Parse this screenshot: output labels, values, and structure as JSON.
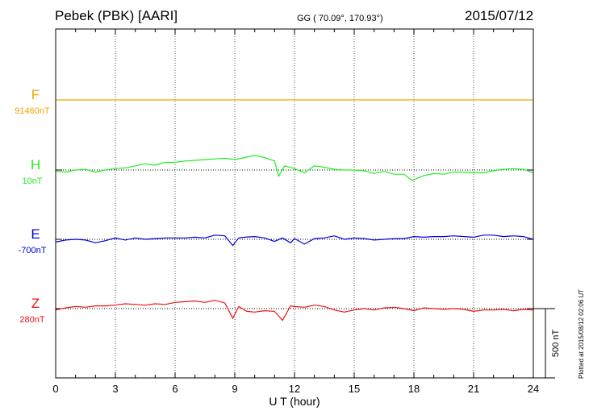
{
  "header": {
    "station": "Pebek (PBK)  [AARI]",
    "coords": "GG ( 70.09°, 170.93°)",
    "date": "2015/07/12"
  },
  "footer": {
    "plotted": "Plotted at 2015/08/12 02:06 UT"
  },
  "chart_data": {
    "type": "line",
    "xlabel": "U T (hour)",
    "xlim": [
      0,
      24
    ],
    "xticks": [
      "0",
      "3",
      "6",
      "9",
      "12",
      "15",
      "18",
      "21",
      "24"
    ],
    "grid": "dotted vertical lines every 3 hours",
    "scale_bar": {
      "label": "500 nT",
      "value_nT": 500
    },
    "series": [
      {
        "name": "F",
        "baseline_label": "91460nT",
        "baseline_nT": 91460,
        "color": "#f5a300",
        "x": [
          0,
          1,
          2,
          3,
          4,
          5,
          6,
          7,
          8,
          9,
          10,
          11,
          12,
          13,
          14,
          15,
          16,
          17,
          18,
          19,
          20,
          21,
          22,
          23,
          24
        ],
        "y": [
          0,
          0,
          0,
          0,
          0,
          0,
          0,
          0,
          0,
          0,
          0,
          0,
          0,
          0,
          0,
          0,
          0,
          0,
          0,
          0,
          0,
          0,
          0,
          0,
          0
        ]
      },
      {
        "name": "H",
        "baseline_label": "10nT",
        "baseline_nT": 10,
        "color": "#22ee22",
        "x": [
          0,
          0.5,
          1,
          1.5,
          2,
          2.5,
          3,
          3.5,
          4,
          4.5,
          5,
          5.5,
          6,
          6.5,
          7,
          7.5,
          8,
          8.5,
          9,
          9.5,
          10,
          10.5,
          11,
          11.2,
          11.5,
          12,
          12.5,
          13,
          13.5,
          14,
          14.5,
          15,
          15.5,
          16,
          16.5,
          17,
          17.5,
          17.9,
          18.5,
          19,
          19.5,
          20,
          20.5,
          21,
          21.5,
          22,
          22.5,
          23,
          23.5,
          24
        ],
        "y": [
          -10,
          -15,
          0,
          5,
          -15,
          0,
          10,
          15,
          30,
          45,
          35,
          55,
          55,
          65,
          70,
          75,
          80,
          85,
          75,
          90,
          105,
          90,
          65,
          -45,
          30,
          10,
          -20,
          30,
          20,
          5,
          0,
          0,
          -5,
          -25,
          -10,
          -30,
          -30,
          -75,
          -40,
          -25,
          -30,
          -15,
          -15,
          -20,
          -20,
          -5,
          5,
          10,
          5,
          -20
        ]
      },
      {
        "name": "E",
        "baseline_label": "-700nT",
        "baseline_nT": -700,
        "color": "#0000dd",
        "x": [
          0,
          0.5,
          1,
          1.5,
          2,
          2.5,
          3,
          3.5,
          4,
          4.5,
          5,
          5.5,
          6,
          6.5,
          7,
          7.5,
          8,
          8.5,
          8.9,
          9.2,
          9.5,
          10,
          10.5,
          11,
          11.4,
          11.8,
          12,
          12.5,
          13,
          13.5,
          14,
          14.5,
          15,
          15.5,
          16,
          16.5,
          17,
          17.5,
          18,
          18.5,
          19,
          19.5,
          20,
          20.5,
          21,
          21.5,
          22,
          22.5,
          23,
          23.5,
          24
        ],
        "y": [
          -20,
          -5,
          0,
          -5,
          -25,
          -10,
          10,
          -5,
          10,
          0,
          5,
          10,
          10,
          10,
          15,
          10,
          30,
          25,
          -45,
          10,
          15,
          20,
          10,
          -15,
          10,
          -25,
          5,
          -35,
          5,
          10,
          25,
          0,
          10,
          5,
          -5,
          0,
          5,
          5,
          20,
          15,
          20,
          20,
          25,
          20,
          15,
          30,
          30,
          20,
          25,
          20,
          0
        ]
      },
      {
        "name": "Z",
        "baseline_label": "280nT",
        "baseline_nT": 280,
        "color": "#ee1111",
        "x": [
          0,
          0.5,
          1,
          1.5,
          2,
          2.5,
          3,
          3.5,
          4,
          4.5,
          5,
          5.5,
          6,
          6.5,
          7,
          7.5,
          8,
          8.5,
          8.9,
          9.2,
          9.6,
          10,
          10.5,
          11,
          11.4,
          11.8,
          12,
          12.5,
          13,
          13.5,
          14,
          14.5,
          15,
          15.5,
          16,
          16.5,
          17,
          17.5,
          18,
          18.5,
          19,
          19.5,
          20,
          20.5,
          21,
          21.5,
          22,
          22.5,
          23,
          23.5,
          24
        ],
        "y": [
          -10,
          5,
          15,
          10,
          20,
          20,
          25,
          35,
          30,
          25,
          35,
          30,
          45,
          50,
          55,
          45,
          60,
          40,
          -70,
          15,
          -20,
          -25,
          -15,
          -20,
          -85,
          20,
          15,
          10,
          25,
          15,
          -10,
          -25,
          -10,
          0,
          -10,
          5,
          10,
          0,
          -15,
          5,
          0,
          -5,
          0,
          -5,
          -20,
          -10,
          -10,
          -5,
          -15,
          -5,
          -10
        ]
      }
    ]
  }
}
